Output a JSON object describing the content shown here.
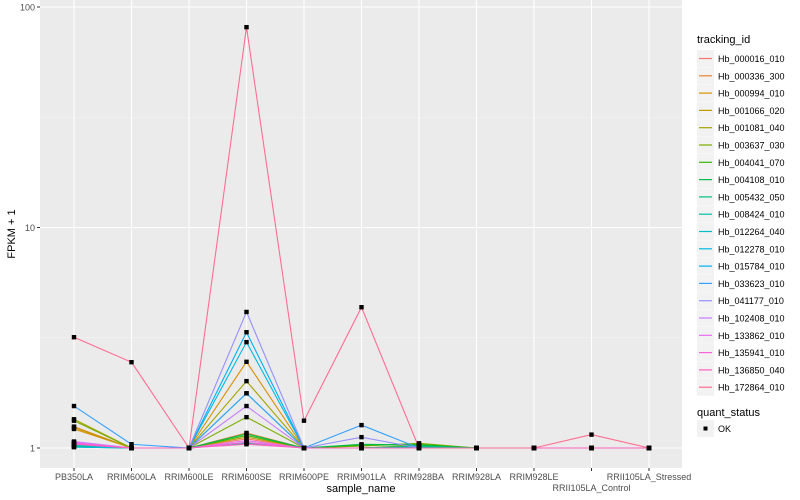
{
  "chart_data": {
    "type": "line",
    "xlabel": "sample_name",
    "ylabel": "FPKM + 1",
    "y_scale": "log10",
    "ylim": [
      0.95,
      105
    ],
    "y_ticks": [
      1,
      10,
      100
    ],
    "y_tick_labels": [
      "1",
      "10",
      "100"
    ],
    "grid": true,
    "legend_position": "right",
    "categories": [
      "PB350LA",
      "RRIM600LA",
      "RRIM600LE",
      "RRIM600SE",
      "RRIM600PE",
      "RRIM901LA",
      "RRIM928BA",
      "RRIM928LA",
      "RRIM928LE",
      "RRII105LA_Control",
      "RRII105LA_Stressed"
    ],
    "color_legend_title": "tracking_id",
    "shape_legend_title": "quant_status",
    "shape_legend_items": [
      "OK"
    ],
    "series": [
      {
        "name": "Hb_000016_010",
        "color": "#F8766D",
        "values": [
          1.03,
          1,
          1,
          1.1,
          1,
          1,
          1.02,
          1,
          1,
          1,
          1
        ]
      },
      {
        "name": "Hb_000336_300",
        "color": "#EA8331",
        "values": [
          1.25,
          1,
          1,
          1.17,
          1,
          1,
          1.01,
          1,
          1,
          1,
          1
        ]
      },
      {
        "name": "Hb_000994_010",
        "color": "#D89000",
        "values": [
          1.22,
          1,
          1,
          2.46,
          1,
          1,
          1.02,
          1,
          1,
          1,
          1
        ]
      },
      {
        "name": "Hb_001066_020",
        "color": "#C09B00",
        "values": [
          1.24,
          1,
          1,
          1.12,
          1,
          1,
          1.01,
          1,
          1,
          1,
          1
        ]
      },
      {
        "name": "Hb_001081_040",
        "color": "#A3A500",
        "values": [
          1.35,
          1,
          1,
          2.01,
          1,
          1,
          1.03,
          1,
          1,
          1,
          1
        ]
      },
      {
        "name": "Hb_003637_030",
        "color": "#7CAE00",
        "values": [
          1.33,
          1,
          1,
          1.38,
          1,
          1.02,
          1.05,
          1,
          1,
          1,
          1
        ]
      },
      {
        "name": "Hb_004041_070",
        "color": "#39B600",
        "values": [
          1.02,
          1,
          1,
          1.14,
          1,
          1.03,
          1.04,
          1,
          1,
          1,
          1
        ]
      },
      {
        "name": "Hb_004108_010",
        "color": "#00BB4E",
        "values": [
          1.02,
          1,
          1,
          1.16,
          1,
          1.04,
          1.03,
          1,
          1,
          1,
          1
        ]
      },
      {
        "name": "Hb_005432_050",
        "color": "#00BF7D",
        "values": [
          1.01,
          1,
          1,
          1.05,
          1,
          1,
          1.02,
          1,
          1,
          1,
          1
        ]
      },
      {
        "name": "Hb_008424_010",
        "color": "#00C1A3",
        "values": [
          1.04,
          1,
          1,
          1.06,
          1,
          1,
          1.01,
          1,
          1,
          1,
          1
        ]
      },
      {
        "name": "Hb_012264_040",
        "color": "#00BFC4",
        "values": [
          1.03,
          1,
          1,
          1.77,
          1,
          1,
          1,
          1,
          1,
          1,
          1
        ]
      },
      {
        "name": "Hb_012278_010",
        "color": "#00BAE0",
        "values": [
          1.01,
          1,
          1,
          3.02,
          1,
          1,
          1,
          1,
          1,
          1,
          1
        ]
      },
      {
        "name": "Hb_015784_010",
        "color": "#00B0F6",
        "values": [
          1.05,
          1,
          1,
          3.35,
          1,
          1,
          1,
          1,
          1,
          1,
          1
        ]
      },
      {
        "name": "Hb_033623_010",
        "color": "#35A2FF",
        "values": [
          1.55,
          1.04,
          1,
          1.77,
          1,
          1.27,
          1,
          1,
          1,
          1,
          1
        ]
      },
      {
        "name": "Hb_041177_010",
        "color": "#9590FF",
        "values": [
          1.06,
          1,
          1,
          4.14,
          1,
          1.12,
          1,
          1,
          1,
          1,
          1
        ]
      },
      {
        "name": "Hb_102408_010",
        "color": "#C77CFF",
        "values": [
          1.07,
          1,
          1,
          1.55,
          1,
          1,
          1,
          1,
          1,
          1,
          1
        ]
      },
      {
        "name": "Hb_133862_010",
        "color": "#E76BF3",
        "values": [
          1.06,
          1,
          1,
          1.08,
          1,
          1,
          1,
          1,
          1,
          1,
          1
        ]
      },
      {
        "name": "Hb_135941_010",
        "color": "#FA62DB",
        "values": [
          1.05,
          1,
          1,
          1.06,
          1,
          1,
          1,
          1,
          1,
          1,
          1
        ]
      },
      {
        "name": "Hb_136850_040",
        "color": "#FF62BC",
        "values": [
          1.04,
          1,
          1,
          1.04,
          1,
          1,
          1,
          1,
          1,
          1,
          1
        ]
      },
      {
        "name": "Hb_172864_010",
        "color": "#FF6C91",
        "values": [
          3.18,
          2.45,
          1,
          81,
          1.33,
          4.35,
          1,
          1,
          1,
          1.15,
          1
        ]
      }
    ]
  }
}
